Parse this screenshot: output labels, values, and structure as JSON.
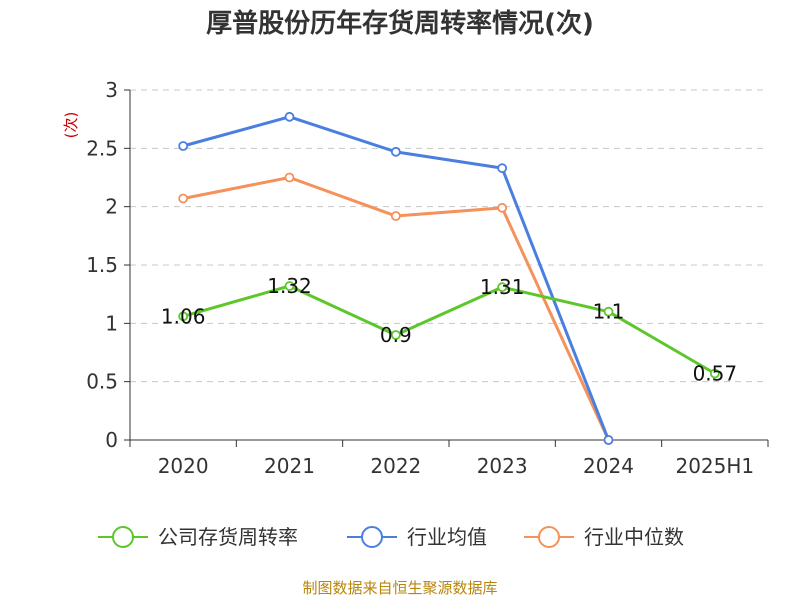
{
  "chart_data": {
    "type": "line",
    "title": "厚普股份历年存货周转率情况(次)",
    "ylabel": "(次)",
    "categories": [
      "2020",
      "2021",
      "2022",
      "2023",
      "2024",
      "2025H1"
    ],
    "ylim": [
      0,
      3
    ],
    "yticks": [
      "0",
      "0.5",
      "1",
      "1.5",
      "2",
      "2.5",
      "3"
    ],
    "grid": true,
    "legend_position": "bottom",
    "series": [
      {
        "name": "公司存货周转率",
        "color": "#5cc72a",
        "values": [
          1.06,
          1.32,
          0.9,
          1.31,
          1.1,
          0.57
        ],
        "labels": [
          "1.06",
          "1.32",
          "0.9",
          "1.31",
          "1.1",
          "0.57"
        ]
      },
      {
        "name": "行业均值",
        "color": "#4a7fe0",
        "values": [
          2.52,
          2.77,
          2.47,
          2.33,
          0,
          null
        ]
      },
      {
        "name": "行业中位数",
        "color": "#f5915a",
        "values": [
          2.07,
          2.25,
          1.92,
          1.99,
          0,
          null
        ]
      }
    ]
  },
  "source": "制图数据来自恒生聚源数据库"
}
